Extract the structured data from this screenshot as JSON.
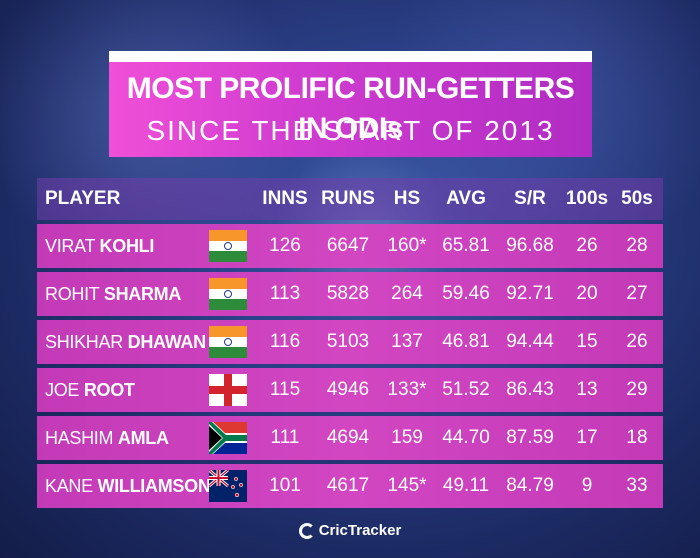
{
  "title": {
    "line1": "MOST PROLIFIC RUN-GETTERS IN ODIs",
    "line2": "SINCE THE START OF 2013"
  },
  "headers": {
    "player": "PLAYER",
    "inns": "INNS",
    "runs": "RUNS",
    "hs": "HS",
    "avg": "AVG",
    "sr": "S/R",
    "hundreds": "100s",
    "fifties": "50s"
  },
  "rows": [
    {
      "first": "VIRAT ",
      "last": "KOHLI",
      "flag": "india-flag-icon",
      "inns": "126",
      "runs": "6647",
      "hs": "160*",
      "avg": "65.81",
      "sr": "96.68",
      "hundreds": "26",
      "fifties": "28"
    },
    {
      "first": "ROHIT ",
      "last": "SHARMA",
      "flag": "india-flag-icon",
      "inns": "113",
      "runs": "5828",
      "hs": "264",
      "avg": "59.46",
      "sr": "92.71",
      "hundreds": "20",
      "fifties": "27"
    },
    {
      "first": "SHIKHAR ",
      "last": "DHAWAN",
      "flag": "india-flag-icon",
      "inns": "116",
      "runs": "5103",
      "hs": "137",
      "avg": "46.81",
      "sr": "94.44",
      "hundreds": "15",
      "fifties": "26"
    },
    {
      "first": "JOE ",
      "last": "ROOT",
      "flag": "england-flag-icon",
      "inns": "115",
      "runs": "4946",
      "hs": "133*",
      "avg": "51.52",
      "sr": "86.43",
      "hundreds": "13",
      "fifties": "29"
    },
    {
      "first": "HASHIM ",
      "last": "AMLA",
      "flag": "south-africa-flag-icon",
      "inns": "111",
      "runs": "4694",
      "hs": "159",
      "avg": "44.70",
      "sr": "87.59",
      "hundreds": "17",
      "fifties": "18"
    },
    {
      "first": "KANE ",
      "last": "WILLIAMSON",
      "flag": "new-zealand-flag-icon",
      "inns": "101",
      "runs": "4617",
      "hs": "145*",
      "avg": "49.11",
      "sr": "84.79",
      "hundreds": "9",
      "fifties": "33"
    }
  ],
  "footer": {
    "brand": "CricTracker",
    "icon": "crictracker-logo-icon"
  },
  "colors": {
    "accent": "#d246c2",
    "title_gradient_start": "#f04fd7",
    "title_gradient_end": "#b12cc3",
    "background": "#2a3f86"
  }
}
